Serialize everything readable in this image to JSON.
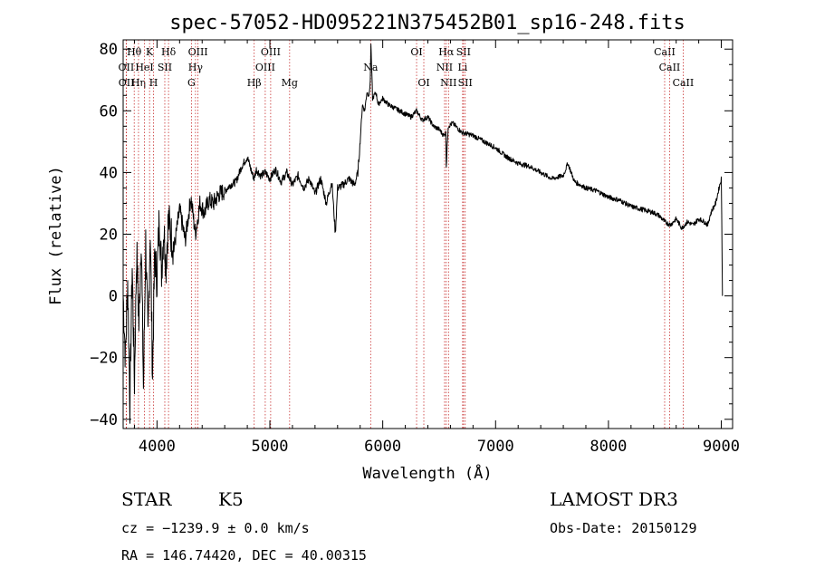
{
  "chart_data": {
    "type": "line",
    "title": "spec-57052-HD095221N375452B01_sp16-248.fits",
    "xlabel": "Wavelength (Å)",
    "ylabel": "Flux (relative)",
    "xlim": [
      3700,
      9100
    ],
    "ylim": [
      -43,
      83
    ],
    "xticks": [
      4000,
      5000,
      6000,
      7000,
      8000,
      9000
    ],
    "yticks": [
      -40,
      -20,
      0,
      20,
      40,
      60,
      80
    ],
    "series": [
      {
        "name": "flux",
        "x": [
          3700,
          3720,
          3740,
          3760,
          3780,
          3800,
          3820,
          3840,
          3860,
          3880,
          3900,
          3920,
          3940,
          3960,
          3980,
          4000,
          4020,
          4040,
          4060,
          4080,
          4100,
          4150,
          4200,
          4250,
          4300,
          4340,
          4380,
          4420,
          4460,
          4500,
          4550,
          4600,
          4650,
          4700,
          4750,
          4800,
          4840,
          4860,
          4880,
          4920,
          4960,
          5000,
          5050,
          5100,
          5150,
          5200,
          5250,
          5300,
          5350,
          5400,
          5450,
          5500,
          5550,
          5580,
          5600,
          5650,
          5700,
          5750,
          5780,
          5800,
          5820,
          5840,
          5860,
          5880,
          5890,
          5895,
          5910,
          5940,
          5960,
          6000,
          6050,
          6100,
          6150,
          6200,
          6250,
          6300,
          6350,
          6400,
          6450,
          6500,
          6540,
          6560,
          6563,
          6580,
          6620,
          6700,
          6800,
          6900,
          7000,
          7100,
          7200,
          7300,
          7400,
          7500,
          7600,
          7640,
          7700,
          7800,
          7900,
          8000,
          8100,
          8200,
          8300,
          8400,
          8450,
          8500,
          8550,
          8600,
          8650,
          8700,
          8750,
          8800,
          8850,
          8880,
          8900,
          8920,
          8950,
          8980,
          9000,
          9010
        ],
        "y": [
          0,
          -20,
          5,
          -35,
          10,
          -28,
          15,
          -10,
          20,
          -30,
          18,
          -15,
          22,
          -25,
          14,
          5,
          26,
          8,
          22,
          10,
          25,
          15,
          28,
          18,
          32,
          20,
          30,
          27,
          31,
          30,
          33,
          34,
          36,
          37,
          42,
          45,
          40,
          38,
          41,
          39,
          40,
          38,
          41,
          37,
          40,
          36,
          39,
          35,
          38,
          33,
          38,
          30,
          37,
          20,
          35,
          36,
          38,
          36,
          40,
          50,
          62,
          60,
          66,
          65,
          70,
          82,
          64,
          66,
          62,
          64,
          62,
          61,
          60,
          59,
          58,
          60,
          57,
          58,
          55,
          54,
          52,
          53,
          42,
          55,
          56,
          53,
          52,
          50,
          48,
          45,
          43,
          42,
          40,
          38,
          39,
          43,
          37,
          35,
          34,
          32,
          31,
          29,
          28,
          27,
          26,
          24,
          23,
          25,
          22,
          24,
          23,
          25,
          24,
          23,
          26,
          28,
          30,
          35,
          38,
          0
        ]
      }
    ],
    "line_markers": [
      {
        "label": "Hθ",
        "x": 3798,
        "row": 0
      },
      {
        "label": "OII",
        "x": 3727,
        "row": 1
      },
      {
        "label": "OII",
        "x": 3729,
        "row": 2
      },
      {
        "label": "Hη",
        "x": 3836,
        "row": 2
      },
      {
        "label": "K",
        "x": 3934,
        "row": 0
      },
      {
        "label": "HeI",
        "x": 3889,
        "row": 1
      },
      {
        "label": "H",
        "x": 3969,
        "row": 2
      },
      {
        "label": "SII",
        "x": 4069,
        "row": 1
      },
      {
        "label": "Hδ",
        "x": 4102,
        "row": 0
      },
      {
        "label": "OIII",
        "x": 4363,
        "row": 0
      },
      {
        "label": "Hγ",
        "x": 4341,
        "row": 1
      },
      {
        "label": "G",
        "x": 4305,
        "row": 2
      },
      {
        "label": "Hβ",
        "x": 4861,
        "row": 2
      },
      {
        "label": "OIII",
        "x": 5007,
        "row": 0
      },
      {
        "label": "OIII",
        "x": 4959,
        "row": 1
      },
      {
        "label": "Mg",
        "x": 5175,
        "row": 2
      },
      {
        "label": "Na",
        "x": 5893,
        "row": 1
      },
      {
        "label": "OI",
        "x": 6300,
        "row": 0
      },
      {
        "label": "OI",
        "x": 6364,
        "row": 2
      },
      {
        "label": "Hα",
        "x": 6563,
        "row": 0
      },
      {
        "label": "NII",
        "x": 6548,
        "row": 1
      },
      {
        "label": "NII",
        "x": 6583,
        "row": 2
      },
      {
        "label": "SII",
        "x": 6716,
        "row": 0
      },
      {
        "label": "Li",
        "x": 6708,
        "row": 1
      },
      {
        "label": "SII",
        "x": 6731,
        "row": 2
      },
      {
        "label": "CaII",
        "x": 8498,
        "row": 0
      },
      {
        "label": "CaII",
        "x": 8542,
        "row": 1
      },
      {
        "label": "CaII",
        "x": 8662,
        "row": 2
      }
    ]
  },
  "info": {
    "object_type": "STAR",
    "subclass": "K5",
    "survey": "LAMOST DR3",
    "cz": "cz = −1239.9 ± 0.0 km/s",
    "obs_date": "Obs-Date: 20150129",
    "coords": "RA = 146.74420, DEC =  40.00315"
  }
}
